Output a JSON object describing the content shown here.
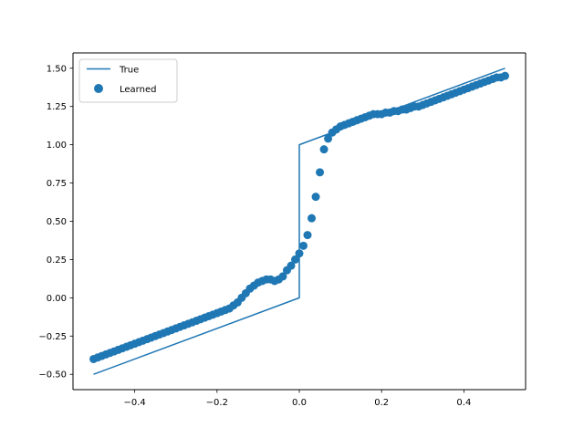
{
  "chart_data": {
    "type": "scatter",
    "title": "",
    "xlabel": "",
    "ylabel": "",
    "xlim": [
      -0.55,
      0.55
    ],
    "ylim": [
      -0.6,
      1.6
    ],
    "grid": false,
    "legend_placement": "upper-left",
    "xticks": [
      -0.4,
      -0.2,
      0.0,
      0.2,
      0.4
    ],
    "xtick_labels": [
      "−0.4",
      "−0.2",
      "0.0",
      "0.2",
      "0.4"
    ],
    "yticks": [
      -0.5,
      -0.25,
      0.0,
      0.25,
      0.5,
      0.75,
      1.0,
      1.25,
      1.5
    ],
    "ytick_labels": [
      "−0.50",
      "−0.25",
      "0.00",
      "0.25",
      "0.50",
      "0.75",
      "1.00",
      "1.25",
      "1.50"
    ],
    "series": [
      {
        "name": "True",
        "kind": "line",
        "color": "#1f77b4",
        "x": [
          -0.5,
          0.0,
          0.0,
          0.5
        ],
        "y": [
          -0.5,
          0.0,
          1.0,
          1.5
        ]
      },
      {
        "name": "Learned",
        "kind": "scatter",
        "color": "#1f77b4",
        "x": [
          -0.5,
          -0.49,
          -0.48,
          -0.47,
          -0.46,
          -0.45,
          -0.44,
          -0.43,
          -0.42,
          -0.41,
          -0.4,
          -0.39,
          -0.38,
          -0.37,
          -0.36,
          -0.35,
          -0.34,
          -0.33,
          -0.32,
          -0.31,
          -0.3,
          -0.29,
          -0.28,
          -0.27,
          -0.26,
          -0.25,
          -0.24,
          -0.23,
          -0.22,
          -0.21,
          -0.2,
          -0.19,
          -0.18,
          -0.17,
          -0.16,
          -0.15,
          -0.14,
          -0.13,
          -0.12,
          -0.11,
          -0.1,
          -0.09,
          -0.08,
          -0.07,
          -0.06,
          -0.05,
          -0.04,
          -0.03,
          -0.02,
          -0.01,
          0.0,
          0.01,
          0.02,
          0.03,
          0.04,
          0.05,
          0.06,
          0.07,
          0.08,
          0.09,
          0.1,
          0.11,
          0.12,
          0.13,
          0.14,
          0.15,
          0.16,
          0.17,
          0.18,
          0.19,
          0.2,
          0.21,
          0.22,
          0.23,
          0.24,
          0.25,
          0.26,
          0.27,
          0.28,
          0.29,
          0.3,
          0.31,
          0.32,
          0.33,
          0.34,
          0.35,
          0.36,
          0.37,
          0.38,
          0.39,
          0.4,
          0.41,
          0.42,
          0.43,
          0.44,
          0.45,
          0.46,
          0.47,
          0.48,
          0.49,
          0.5
        ],
        "y": [
          -0.4,
          -0.39,
          -0.38,
          -0.37,
          -0.36,
          -0.35,
          -0.34,
          -0.33,
          -0.32,
          -0.31,
          -0.3,
          -0.29,
          -0.28,
          -0.27,
          -0.26,
          -0.25,
          -0.24,
          -0.23,
          -0.22,
          -0.21,
          -0.2,
          -0.19,
          -0.18,
          -0.17,
          -0.16,
          -0.15,
          -0.14,
          -0.13,
          -0.12,
          -0.11,
          -0.1,
          -0.09,
          -0.08,
          -0.07,
          -0.05,
          -0.03,
          0.0,
          0.03,
          0.06,
          0.08,
          0.1,
          0.11,
          0.12,
          0.12,
          0.11,
          0.12,
          0.14,
          0.18,
          0.21,
          0.25,
          0.29,
          0.34,
          0.41,
          0.52,
          0.66,
          0.82,
          0.97,
          1.04,
          1.08,
          1.1,
          1.12,
          1.13,
          1.14,
          1.15,
          1.16,
          1.17,
          1.18,
          1.19,
          1.2,
          1.2,
          1.2,
          1.21,
          1.21,
          1.22,
          1.22,
          1.23,
          1.23,
          1.24,
          1.25,
          1.25,
          1.26,
          1.27,
          1.28,
          1.29,
          1.3,
          1.31,
          1.32,
          1.33,
          1.34,
          1.35,
          1.36,
          1.37,
          1.38,
          1.39,
          1.4,
          1.41,
          1.42,
          1.43,
          1.44,
          1.44,
          1.45
        ]
      }
    ]
  }
}
